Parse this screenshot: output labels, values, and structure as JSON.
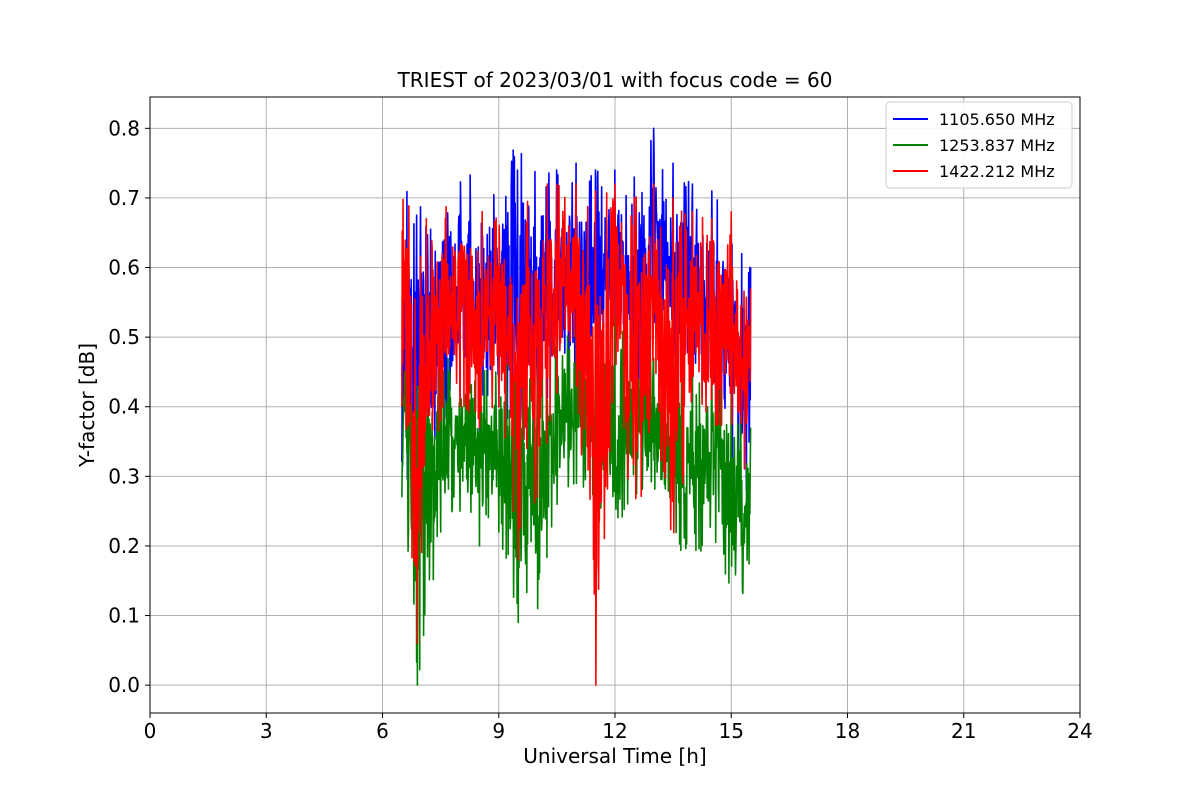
{
  "chart_data": {
    "type": "line",
    "title": "TRIEST of 2023/03/01 with focus code = 60",
    "xlabel": "Universal Time [h]",
    "ylabel": "Y-factor [dB]",
    "xlim": [
      0,
      24
    ],
    "ylim": [
      -0.04,
      0.845
    ],
    "xticks": [
      0,
      3,
      6,
      9,
      12,
      15,
      18,
      21,
      24
    ],
    "yticks": [
      0.0,
      0.1,
      0.2,
      0.3,
      0.4,
      0.5,
      0.6,
      0.7,
      0.8
    ],
    "ytick_labels": [
      "0.0",
      "0.1",
      "0.2",
      "0.3",
      "0.4",
      "0.5",
      "0.6",
      "0.7",
      "0.8"
    ],
    "grid": true,
    "legend_position": "top-right",
    "series": [
      {
        "name": "1105.650 MHz",
        "color": "#0000ff",
        "x": [
          6.5,
          6.9,
          7.5,
          8.0,
          8.5,
          9.0,
          9.5,
          10.0,
          10.5,
          11.0,
          11.5,
          12.0,
          12.5,
          13.0,
          13.5,
          14.0,
          14.5,
          15.0,
          15.5
        ],
        "y_min": [
          0.32,
          0.25,
          0.36,
          0.4,
          0.36,
          0.4,
          0.35,
          0.33,
          0.42,
          0.38,
          0.45,
          0.48,
          0.4,
          0.42,
          0.45,
          0.4,
          0.36,
          0.3,
          0.26
        ],
        "y_max": [
          0.72,
          0.69,
          0.7,
          0.75,
          0.74,
          0.73,
          0.8,
          0.76,
          0.74,
          0.75,
          0.74,
          0.74,
          0.73,
          0.8,
          0.75,
          0.72,
          0.71,
          0.67,
          0.6
        ]
      },
      {
        "name": "1253.837 MHz",
        "color": "#008000",
        "x": [
          6.5,
          6.9,
          7.5,
          8.0,
          8.5,
          9.0,
          9.5,
          10.0,
          10.5,
          11.0,
          11.5,
          12.0,
          12.5,
          13.0,
          13.5,
          14.0,
          14.5,
          15.0,
          15.5
        ],
        "y_min": [
          0.27,
          0.0,
          0.22,
          0.25,
          0.2,
          0.22,
          0.09,
          0.11,
          0.26,
          0.29,
          0.26,
          0.18,
          0.25,
          0.27,
          0.2,
          0.17,
          0.22,
          0.13,
          0.12
        ],
        "y_max": [
          0.48,
          0.49,
          0.47,
          0.47,
          0.46,
          0.48,
          0.46,
          0.49,
          0.5,
          0.51,
          0.52,
          0.53,
          0.5,
          0.47,
          0.48,
          0.46,
          0.45,
          0.43,
          0.37
        ]
      },
      {
        "name": "1422.212 MHz",
        "color": "#ff0000",
        "x": [
          6.5,
          6.9,
          7.5,
          8.0,
          8.5,
          9.0,
          9.5,
          10.0,
          10.5,
          11.0,
          11.5,
          12.0,
          12.5,
          13.0,
          13.5,
          14.0,
          14.5,
          15.0,
          15.5
        ],
        "y_min": [
          0.4,
          0.06,
          0.38,
          0.4,
          0.37,
          0.4,
          0.18,
          0.27,
          0.42,
          0.43,
          0.0,
          0.45,
          0.19,
          0.4,
          0.19,
          0.38,
          0.37,
          0.33,
          0.3
        ],
        "y_max": [
          0.73,
          0.68,
          0.69,
          0.7,
          0.69,
          0.68,
          0.68,
          0.73,
          0.72,
          0.72,
          0.71,
          0.72,
          0.7,
          0.72,
          0.7,
          0.68,
          0.67,
          0.68,
          0.57
        ]
      }
    ]
  }
}
